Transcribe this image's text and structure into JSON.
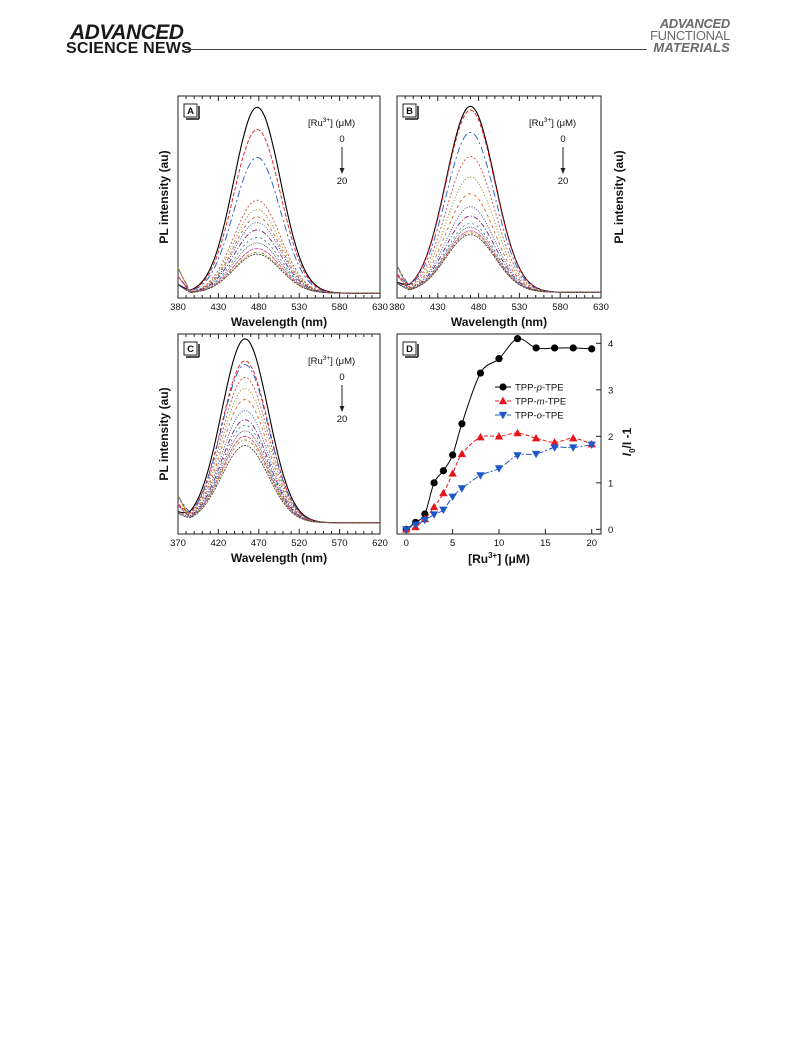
{
  "header": {
    "brand_top": "ADVANCED",
    "brand_bottom": "SCIENCE NEWS",
    "journal_line1": "ADVANCED",
    "journal_line2": "FUNCTIONAL",
    "journal_line3": "MATERIALS"
  },
  "colors": {
    "curve_colors": [
      "#000000",
      "#e8161b",
      "#1f57c8",
      "#c0504d",
      "#808000",
      "#d2691e",
      "#3344aa",
      "#7a1f7a",
      "#2a8c8c",
      "#555555",
      "#d04a8a",
      "#aa8800",
      "#444444"
    ],
    "series": [
      "#000000",
      "#e8161b",
      "#1f57c8"
    ]
  },
  "chart_data": [
    {
      "type": "line",
      "panel": "A",
      "xlabel": "Wavelength (nm)",
      "ylabel": "PL intensity (au)",
      "xlim": [
        380,
        630
      ],
      "xticks": [
        380,
        430,
        480,
        530,
        580,
        630
      ],
      "y_ticks_shown": false,
      "legend": {
        "label": "[Ru",
        "sup": "3+",
        "unit": "] (μM)",
        "start": "0",
        "end": "20"
      },
      "peak_wavelength": 478,
      "fwhm": 68,
      "baseline": 0.015,
      "relative_peak_intensities": [
        1.0,
        0.88,
        0.73,
        0.5,
        0.45,
        0.41,
        0.38,
        0.34,
        0.3,
        0.27,
        0.24,
        0.22,
        0.21
      ]
    },
    {
      "type": "line",
      "panel": "B",
      "xlabel": "Wavelength (nm)",
      "ylabel": "PL intensity (au)",
      "xlim": [
        380,
        630
      ],
      "xticks": [
        380,
        430,
        480,
        530,
        580,
        630
      ],
      "y_ticks_shown": false,
      "legend": {
        "label": "[Ru",
        "sup": "3+",
        "unit": "] (μM)",
        "start": "0",
        "end": "20"
      },
      "peak_wavelength": 470,
      "fwhm": 70,
      "baseline": 0.02,
      "relative_peak_intensities": [
        1.0,
        0.98,
        0.86,
        0.73,
        0.62,
        0.53,
        0.46,
        0.41,
        0.37,
        0.35,
        0.33,
        0.32,
        0.31
      ]
    },
    {
      "type": "line",
      "panel": "C",
      "xlabel": "Wavelength (nm)",
      "ylabel": "PL intensity (au)",
      "xlim": [
        370,
        620
      ],
      "xticks": [
        370,
        420,
        470,
        520,
        570,
        620
      ],
      "y_ticks_shown": false,
      "legend": {
        "label": "[Ru",
        "sup": "3+",
        "unit": "] (μM)",
        "start": "0",
        "end": "20"
      },
      "peak_wavelength": 453,
      "fwhm": 68,
      "baseline": 0.05,
      "relative_peak_intensities": [
        1.0,
        0.88,
        0.86,
        0.79,
        0.73,
        0.67,
        0.61,
        0.56,
        0.53,
        0.5,
        0.47,
        0.45,
        0.42
      ]
    },
    {
      "type": "scatter",
      "panel": "D",
      "xlabel": "[Ru",
      "xlabel_sup": "3+",
      "xlabel_unit": "] (μM)",
      "ylabel": "I",
      "ylabel_sub": "0",
      "ylabel_rest": "/I -1",
      "xlim": [
        -1,
        21
      ],
      "ylim": [
        -0.1,
        4.2
      ],
      "xticks": [
        0,
        5,
        10,
        15,
        20
      ],
      "yticks": [
        0,
        1,
        2,
        3,
        4
      ],
      "legend_position": "upper-right",
      "series": [
        {
          "name": "TPP-",
          "name_italic": "p",
          "name_tail": "-TPE",
          "marker": "circle",
          "x": [
            0,
            1,
            2,
            3,
            4,
            5,
            6,
            8,
            10,
            12,
            14,
            16,
            18,
            20
          ],
          "y": [
            0.0,
            0.15,
            0.33,
            1.0,
            1.26,
            1.6,
            2.27,
            3.36,
            3.67,
            4.1,
            3.9,
            3.9,
            3.9,
            3.88
          ]
        },
        {
          "name": "TPP-",
          "name_italic": "m",
          "name_tail": "-TPE",
          "marker": "triangle-up",
          "x": [
            0,
            1,
            2,
            3,
            4,
            5,
            6,
            8,
            10,
            12,
            14,
            16,
            18,
            20
          ],
          "y": [
            0.0,
            0.05,
            0.22,
            0.48,
            0.78,
            1.2,
            1.62,
            1.98,
            2.0,
            2.07,
            1.96,
            1.87,
            1.96,
            1.83
          ]
        },
        {
          "name": "TPP-",
          "name_italic": "o",
          "name_tail": "-TPE",
          "marker": "triangle-down",
          "x": [
            0,
            1,
            2,
            3,
            4,
            5,
            6,
            8,
            10,
            12,
            14,
            16,
            18,
            20
          ],
          "y": [
            0.0,
            0.1,
            0.2,
            0.32,
            0.42,
            0.7,
            0.88,
            1.16,
            1.31,
            1.59,
            1.62,
            1.76,
            1.76,
            1.82
          ]
        }
      ]
    }
  ]
}
